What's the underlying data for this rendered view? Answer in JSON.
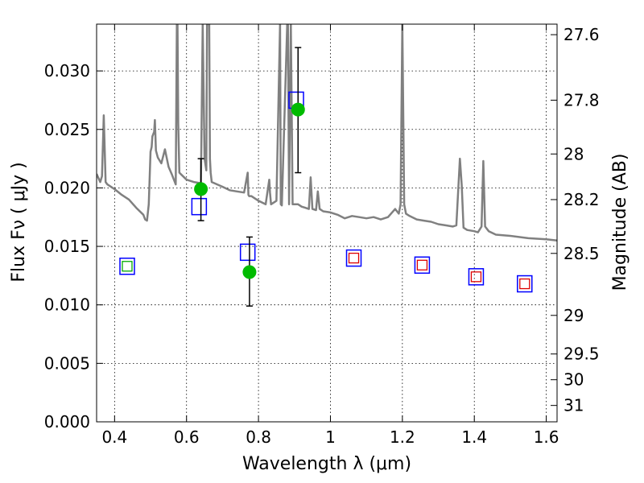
{
  "chart_data": {
    "type": "scatter",
    "xlabel": "Wavelength  λ (μm)",
    "ylabel": "Flux  Fν  ( μJy )",
    "y2label": "Magnitude (AB)",
    "xlim": [
      0.35,
      1.63
    ],
    "ylim": [
      0.0,
      0.034
    ],
    "xticks": [
      0.4,
      0.6,
      0.8,
      1.0,
      1.2,
      1.4,
      1.6
    ],
    "xtick_labels": [
      "0.4",
      "0.6",
      "0.8",
      "1",
      "1.2",
      "1.4",
      "1.6"
    ],
    "yticks": [
      0.0,
      0.005,
      0.01,
      0.015,
      0.02,
      0.025,
      0.03
    ],
    "ytick_labels": [
      "0.000",
      "0.005",
      "0.010",
      "0.015",
      "0.020",
      "0.025",
      "0.030"
    ],
    "mag_ticks": [
      {
        "label": "27.6",
        "flux": 0.0331
      },
      {
        "label": "27.8",
        "flux": 0.0275
      },
      {
        "label": "28",
        "flux": 0.0229
      },
      {
        "label": "28.2",
        "flux": 0.019
      },
      {
        "label": "28.5",
        "flux": 0.0144
      },
      {
        "label": "29",
        "flux": 0.0091
      },
      {
        "label": "29.5",
        "flux": 0.0058
      },
      {
        "label": "30",
        "flux": 0.0036
      },
      {
        "label": "31",
        "flux": 0.0014
      }
    ],
    "grid": true,
    "series": [
      {
        "style": "line",
        "color": "#808080",
        "x": [
          0.35,
          0.36,
          0.365,
          0.37,
          0.375,
          0.38,
          0.4,
          0.42,
          0.44,
          0.46,
          0.48,
          0.485,
          0.49,
          0.495,
          0.5,
          0.503,
          0.505,
          0.51,
          0.512,
          0.515,
          0.52,
          0.53,
          0.54,
          0.55,
          0.56,
          0.57,
          0.573,
          0.575,
          0.577,
          0.58,
          0.6,
          0.62,
          0.64,
          0.645,
          0.65,
          0.655,
          0.657,
          0.66,
          0.663,
          0.665,
          0.667,
          0.67,
          0.7,
          0.72,
          0.74,
          0.76,
          0.77,
          0.772,
          0.774,
          0.78,
          0.8,
          0.82,
          0.83,
          0.832,
          0.835,
          0.85,
          0.86,
          0.862,
          0.865,
          0.88,
          0.882,
          0.885,
          0.89,
          0.895,
          0.9,
          0.907,
          0.91,
          0.92,
          0.93,
          0.94,
          0.945,
          0.95,
          0.96,
          0.965,
          0.97,
          0.98,
          1.0,
          1.02,
          1.04,
          1.06,
          1.08,
          1.1,
          1.12,
          1.14,
          1.16,
          1.18,
          1.19,
          1.195,
          1.2,
          1.205,
          1.21,
          1.22,
          1.24,
          1.26,
          1.28,
          1.3,
          1.32,
          1.34,
          1.35,
          1.36,
          1.365,
          1.37,
          1.38,
          1.4,
          1.41,
          1.42,
          1.425,
          1.43,
          1.44,
          1.46,
          1.5,
          1.55,
          1.6,
          1.63
        ],
        "y": [
          0.0212,
          0.0205,
          0.021,
          0.0262,
          0.0205,
          0.0203,
          0.0199,
          0.0194,
          0.019,
          0.0183,
          0.0177,
          0.0173,
          0.0172,
          0.0186,
          0.0231,
          0.0235,
          0.0244,
          0.0248,
          0.0258,
          0.0232,
          0.0226,
          0.0221,
          0.0233,
          0.0218,
          0.0211,
          0.0203,
          0.034,
          0.034,
          0.0255,
          0.0213,
          0.0207,
          0.0205,
          0.0204,
          0.034,
          0.0225,
          0.0215,
          0.034,
          0.034,
          0.034,
          0.0225,
          0.0213,
          0.0205,
          0.0201,
          0.0198,
          0.0197,
          0.0196,
          0.0213,
          0.0194,
          0.0193,
          0.0193,
          0.0189,
          0.0186,
          0.0207,
          0.0196,
          0.0186,
          0.0189,
          0.034,
          0.0186,
          0.0185,
          0.034,
          0.034,
          0.0186,
          0.034,
          0.0186,
          0.0186,
          0.0186,
          0.0186,
          0.0184,
          0.0183,
          0.0182,
          0.0209,
          0.0182,
          0.0181,
          0.0197,
          0.0182,
          0.018,
          0.0179,
          0.0177,
          0.0174,
          0.0176,
          0.0175,
          0.0174,
          0.0175,
          0.0173,
          0.0175,
          0.0182,
          0.0178,
          0.0186,
          0.034,
          0.0186,
          0.0178,
          0.0176,
          0.0173,
          0.0172,
          0.0171,
          0.0169,
          0.0168,
          0.0167,
          0.0168,
          0.0225,
          0.0202,
          0.0166,
          0.0164,
          0.0163,
          0.0162,
          0.0167,
          0.0223,
          0.0167,
          0.0163,
          0.016,
          0.0159,
          0.0157,
          0.0156,
          0.0155
        ]
      },
      {
        "style": "open-square",
        "color": "#0000ff",
        "x": [
          0.435,
          0.635,
          0.77,
          0.905,
          1.065,
          1.255,
          1.405,
          1.54
        ],
        "y": [
          0.0133,
          0.0184,
          0.0145,
          0.0275,
          0.014,
          0.0134,
          0.0124,
          0.0118
        ]
      },
      {
        "style": "small-open-square-green",
        "color": "#00aa00",
        "x": [
          0.435
        ],
        "y": [
          0.0133
        ]
      },
      {
        "style": "small-open-square-red",
        "color": "#dd0000",
        "x": [
          1.065,
          1.255,
          1.405,
          1.54
        ],
        "y": [
          0.014,
          0.0134,
          0.0124,
          0.0118
        ]
      },
      {
        "style": "filled-circle-errorbar",
        "color": "#00bb00",
        "x": [
          0.64,
          0.775,
          0.91
        ],
        "y": [
          0.0199,
          0.0128,
          0.0267
        ],
        "yerr_low": [
          0.0172,
          0.0099,
          0.0213
        ],
        "yerr_high": [
          0.0225,
          0.0158,
          0.032
        ]
      }
    ]
  }
}
